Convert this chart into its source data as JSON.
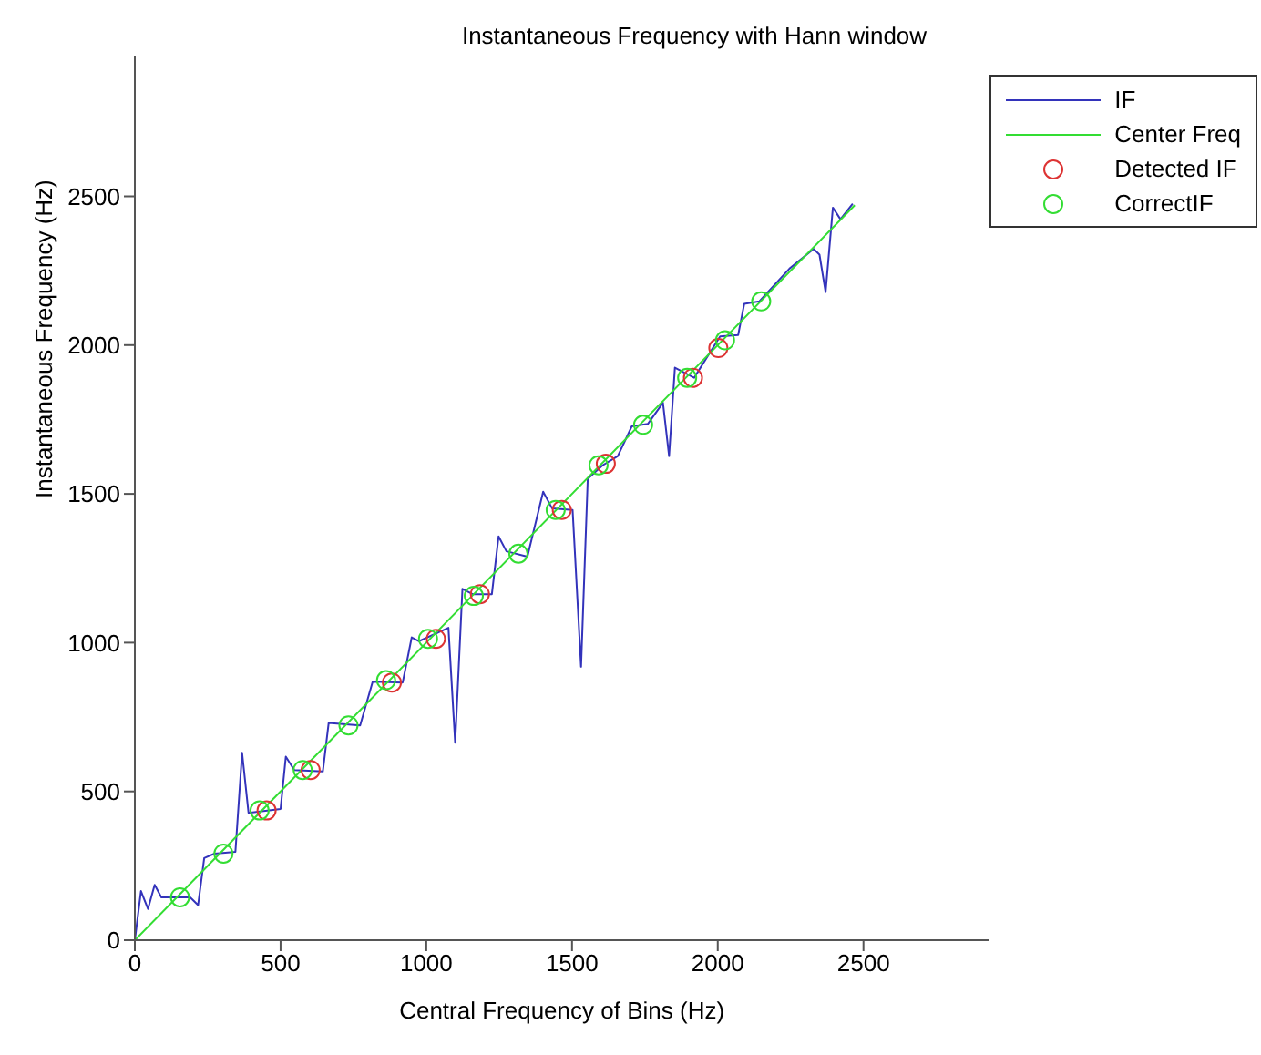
{
  "chart_data": {
    "type": "line",
    "title": "Instantaneous Frequency with Hann window",
    "xlabel": "Central Frequency of Bins (Hz)",
    "ylabel": "Instantaneous Frequency (Hz)",
    "xlim": [
      0,
      2930
    ],
    "ylim": [
      0,
      2970
    ],
    "xticks": [
      0,
      500,
      1000,
      1500,
      2000,
      2500
    ],
    "yticks": [
      0,
      500,
      1000,
      1500,
      2000,
      2500
    ],
    "grid": false,
    "legend": "top right",
    "series": [
      {
        "name": "IF",
        "color": "#3333bb",
        "marker": "none",
        "x": [
          0,
          21,
          45,
          68,
          91,
          190,
          217,
          238,
          273,
          345,
          368,
          390,
          500,
          518,
          547,
          645,
          665,
          773,
          816,
          919,
          950,
          975,
          1076,
          1099,
          1124,
          1159,
          1225,
          1248,
          1275,
          1347,
          1401,
          1432,
          1502,
          1531,
          1554,
          1605,
          1657,
          1705,
          1760,
          1812,
          1833,
          1853,
          1919,
          2008,
          2070,
          2091,
          2143,
          2246,
          2329,
          2349,
          2370,
          2395,
          2421,
          2463
        ],
        "values": [
          0,
          165,
          105,
          186,
          144,
          144,
          118,
          276,
          291,
          297,
          630,
          428,
          441,
          617,
          572,
          567,
          730,
          722,
          869,
          866,
          1018,
          1005,
          1050,
          664,
          1181,
          1163,
          1163,
          1357,
          1307,
          1289,
          1507,
          1451,
          1446,
          919,
          1551,
          1596,
          1627,
          1727,
          1735,
          1806,
          1627,
          1924,
          1890,
          2029,
          2034,
          2139,
          2147,
          2257,
          2323,
          2304,
          2178,
          2462,
          2423,
          2475
        ]
      },
      {
        "name": "Center Freq",
        "color": "#33dd33",
        "marker": "none",
        "x": [
          0,
          2470
        ],
        "values": [
          0,
          2470
        ]
      },
      {
        "name": "Detected IF",
        "type": "scatter",
        "color": "#dd3333",
        "marker": "circle",
        "x": [
          452,
          603,
          882,
          1033,
          1184,
          1465,
          1616,
          1915,
          2002
        ],
        "values": [
          436,
          572,
          866,
          1013,
          1163,
          1446,
          1601,
          1890,
          1990
        ]
      },
      {
        "name": "CorrectIF",
        "type": "scatter",
        "color": "#33dd33",
        "marker": "circle",
        "x": [
          155,
          304,
          428,
          576,
          733,
          862,
          1006,
          1163,
          1316,
          1444,
          1591,
          1744,
          1895,
          2025,
          2149
        ],
        "values": [
          144,
          291,
          436,
          572,
          722,
          874,
          1013,
          1157,
          1299,
          1446,
          1596,
          1732,
          1890,
          2016,
          2147
        ]
      }
    ]
  }
}
